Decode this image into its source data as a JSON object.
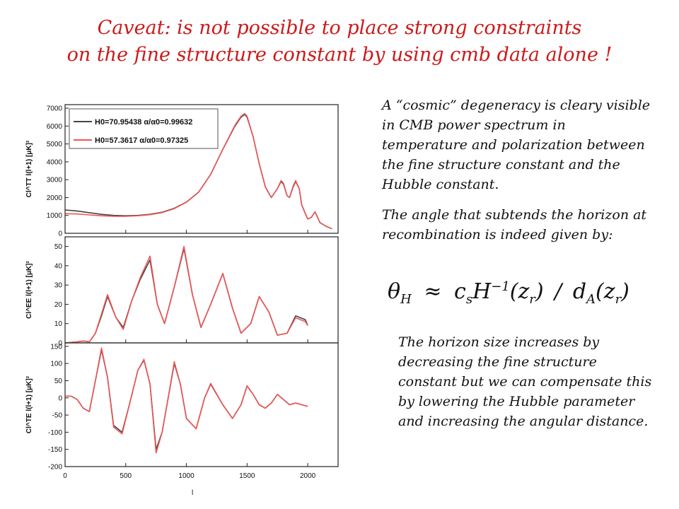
{
  "slide": {
    "title_line1": "Caveat: is not possible to place strong constraints",
    "title_line2": "on the fine structure constant by using cmb data alone !",
    "paragraph1": "A “cosmic” degeneracy is cleary visible in CMB power spectrum in temperature and polarization between the fine structure constant and the Hubble constant.",
    "paragraph2": "The angle that subtends the horizon at recombination is indeed given by:",
    "paragraph3": "The horizon size increases by decreasing the fine structure constant but we can compensate this by lowering the Hubble parameter and increasing the angular distance.",
    "formula": {
      "theta": "θ",
      "theta_sub": "H",
      "approx": "≈",
      "cs": "c",
      "cs_sub": "s",
      "H": "H",
      "H_sup": "−1",
      "zr1": "(z",
      "zr1_sub": "r",
      "zr1_close": ")",
      "slash": "/",
      "dA": "d",
      "dA_sub": "A",
      "zr2": "(z",
      "zr2_sub": "r",
      "zr2_close": ")"
    },
    "colors": {
      "title": "#cc1a1a",
      "series_black": "#444444",
      "series_red": "#ee5555"
    }
  },
  "chart_data": [
    {
      "type": "line",
      "panel": "TT",
      "ylabel": "Cl^TT l(l+1) [μK]²",
      "xlim": [
        0,
        2250
      ],
      "ylim": [
        0,
        7200
      ],
      "yticks": [
        "0",
        "1000",
        "2000",
        "3000",
        "4000",
        "5000",
        "6000",
        "7000"
      ],
      "series": [
        {
          "name": "H0=70.95438 α/α0=0.99632",
          "x": [
            2,
            100,
            200,
            300,
            400,
            500,
            600,
            700,
            800,
            900,
            1000,
            1100,
            1200,
            1300,
            1400,
            1450,
            1480,
            1500,
            1550,
            1600,
            1650,
            1700,
            1750,
            1780,
            1800,
            1830,
            1850,
            1880,
            1900,
            1930,
            1950,
            1980,
            2000,
            2030,
            2060,
            2100,
            2150,
            2200
          ],
          "y": [
            1300,
            1250,
            1150,
            1060,
            1000,
            980,
            1000,
            1060,
            1180,
            1400,
            1750,
            2300,
            3300,
            4700,
            6000,
            6500,
            6650,
            6500,
            5400,
            3900,
            2600,
            2000,
            2500,
            2900,
            2750,
            2100,
            2000,
            2600,
            2900,
            2500,
            1600,
            1100,
            800,
            900,
            1200,
            600,
            400,
            250
          ]
        },
        {
          "name": "H0=57.3617 α/α0=0.97325",
          "x": [
            2,
            100,
            200,
            300,
            400,
            500,
            600,
            700,
            800,
            900,
            1000,
            1100,
            1200,
            1300,
            1400,
            1450,
            1480,
            1500,
            1550,
            1600,
            1650,
            1700,
            1750,
            1780,
            1800,
            1830,
            1850,
            1880,
            1900,
            1930,
            1950,
            1980,
            2000,
            2030,
            2060,
            2100,
            2150,
            2200
          ],
          "y": [
            1100,
            1080,
            1030,
            980,
            950,
            950,
            980,
            1040,
            1160,
            1380,
            1740,
            2290,
            3300,
            4700,
            6050,
            6550,
            6700,
            6550,
            5400,
            3900,
            2600,
            2000,
            2500,
            2950,
            2800,
            2100,
            2000,
            2650,
            2950,
            2500,
            1600,
            1100,
            800,
            900,
            1200,
            600,
            400,
            250
          ]
        }
      ]
    },
    {
      "type": "line",
      "panel": "EE",
      "ylabel": "Cl^EE l(l+1) [μK]²",
      "xlim": [
        0,
        2250
      ],
      "ylim": [
        0,
        55
      ],
      "yticks": [
        "0",
        "10",
        "20",
        "30",
        "40",
        "50"
      ],
      "series": [
        {
          "name": "H0=70.95438 α/α0=0.99632",
          "x": [
            2,
            100,
            150,
            200,
            250,
            300,
            350,
            420,
            480,
            550,
            620,
            700,
            760,
            820,
            900,
            980,
            1050,
            1120,
            1200,
            1300,
            1380,
            1450,
            1530,
            1600,
            1680,
            1750,
            1830,
            1900,
            1980,
            2000
          ],
          "y": [
            0,
            0.5,
            1,
            0.5,
            5,
            14,
            24,
            13,
            8,
            22,
            33,
            43,
            20,
            10,
            29,
            49,
            25,
            8,
            20,
            36,
            18,
            5,
            10,
            24,
            16,
            4,
            5,
            14,
            12,
            9
          ]
        },
        {
          "name": "H0=57.3617 α/α0=0.97325",
          "x": [
            2,
            100,
            150,
            200,
            250,
            300,
            350,
            420,
            480,
            550,
            620,
            700,
            760,
            820,
            900,
            980,
            1050,
            1120,
            1200,
            1300,
            1380,
            1450,
            1530,
            1600,
            1680,
            1750,
            1830,
            1900,
            1980,
            2000
          ],
          "y": [
            0,
            0.5,
            1,
            0.5,
            5,
            15,
            25,
            13,
            7,
            22,
            34,
            45,
            20,
            10,
            29,
            50,
            25,
            8,
            20,
            36,
            18,
            5,
            10,
            24,
            16,
            4,
            5,
            13,
            11,
            9
          ]
        }
      ]
    },
    {
      "type": "line",
      "panel": "TE",
      "ylabel": "Cl^TE l(l+1) [μK]²",
      "xlabel": "l",
      "xlim": [
        0,
        2250
      ],
      "ylim": [
        -200,
        160
      ],
      "yticks": [
        "-200",
        "-150",
        "-100",
        "-50",
        "0",
        "50",
        "100",
        "150"
      ],
      "xticks": [
        "0",
        "500",
        "1000",
        "1500",
        "2000"
      ],
      "series": [
        {
          "name": "H0=70.95438 α/α0=0.99632",
          "x": [
            2,
            50,
            100,
            150,
            200,
            250,
            300,
            350,
            400,
            470,
            530,
            600,
            650,
            700,
            750,
            800,
            850,
            900,
            950,
            1000,
            1080,
            1150,
            1200,
            1300,
            1380,
            1450,
            1500,
            1550,
            1600,
            1650,
            1700,
            1750,
            1800,
            1850,
            1900,
            1950,
            2000
          ],
          "y": [
            5,
            5,
            -5,
            -30,
            -40,
            50,
            140,
            60,
            -80,
            -100,
            -20,
            80,
            110,
            40,
            -150,
            -100,
            0,
            100,
            40,
            -60,
            -90,
            0,
            40,
            -20,
            -60,
            -20,
            35,
            10,
            -20,
            -30,
            -15,
            10,
            -5,
            -20,
            -15,
            -20,
            -25
          ]
        },
        {
          "name": "H0=57.3617 α/α0=0.97325",
          "x": [
            2,
            50,
            100,
            150,
            200,
            250,
            300,
            350,
            400,
            470,
            530,
            600,
            650,
            700,
            750,
            800,
            850,
            900,
            950,
            1000,
            1080,
            1150,
            1200,
            1300,
            1380,
            1450,
            1500,
            1550,
            1600,
            1650,
            1700,
            1750,
            1800,
            1850,
            1900,
            1950,
            2000
          ],
          "y": [
            5,
            5,
            -5,
            -30,
            -40,
            50,
            145,
            60,
            -85,
            -105,
            -20,
            80,
            112,
            40,
            -160,
            -100,
            0,
            105,
            40,
            -60,
            -90,
            0,
            42,
            -20,
            -60,
            -20,
            35,
            10,
            -20,
            -30,
            -15,
            10,
            -5,
            -20,
            -15,
            -20,
            -25
          ]
        }
      ]
    }
  ]
}
